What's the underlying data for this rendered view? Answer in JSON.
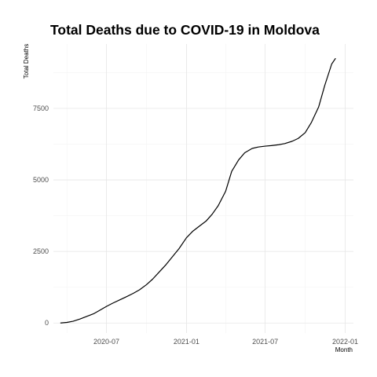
{
  "chart_data": {
    "type": "line",
    "title": "Total Deaths due to COVID-19 in Moldova",
    "xlabel": "Month",
    "ylabel": "Total Deaths",
    "xlim": [
      "2020-03-01",
      "2022-01-20"
    ],
    "ylim": [
      -350,
      9750
    ],
    "x_ticks": [
      {
        "date": "2020-07-01",
        "label": "2020-07"
      },
      {
        "date": "2021-01-01",
        "label": "2021-01"
      },
      {
        "date": "2021-07-01",
        "label": "2021-07"
      },
      {
        "date": "2022-01-01",
        "label": "2022-01"
      }
    ],
    "x_minor_ticks": [
      "2020-04-01",
      "2020-10-01",
      "2021-04-01",
      "2021-10-01"
    ],
    "y_ticks": [
      0,
      2500,
      5000,
      7500
    ],
    "y_minor_ticks": [
      1250,
      3750,
      6250,
      8750
    ],
    "grid": true,
    "legend": "none",
    "line_color": "#000000",
    "series": [
      {
        "x": [
          "2020-03-17",
          "2020-04-01",
          "2020-04-15",
          "2020-05-01",
          "2020-05-15",
          "2020-06-01",
          "2020-06-15",
          "2020-07-01",
          "2020-07-15",
          "2020-08-01",
          "2020-08-15",
          "2020-09-01",
          "2020-09-15",
          "2020-10-01",
          "2020-10-15",
          "2020-11-01",
          "2020-11-15",
          "2020-12-01",
          "2020-12-15",
          "2021-01-01",
          "2021-01-15",
          "2021-02-01",
          "2021-02-15",
          "2021-03-01",
          "2021-03-15",
          "2021-04-01",
          "2021-04-15",
          "2021-05-01",
          "2021-05-15",
          "2021-06-01",
          "2021-06-15",
          "2021-07-01",
          "2021-07-15",
          "2021-08-01",
          "2021-08-15",
          "2021-09-01",
          "2021-09-15",
          "2021-10-01",
          "2021-10-15",
          "2021-11-01",
          "2021-11-15",
          "2021-12-01",
          "2021-12-10"
        ],
        "values": [
          0,
          20,
          60,
          140,
          220,
          320,
          440,
          580,
          690,
          810,
          910,
          1040,
          1160,
          1340,
          1530,
          1810,
          2040,
          2340,
          2600,
          2980,
          3200,
          3400,
          3560,
          3800,
          4100,
          4600,
          5300,
          5700,
          5950,
          6100,
          6150,
          6180,
          6200,
          6230,
          6270,
          6350,
          6450,
          6650,
          7000,
          7550,
          8300,
          9050,
          9250
        ]
      }
    ]
  }
}
